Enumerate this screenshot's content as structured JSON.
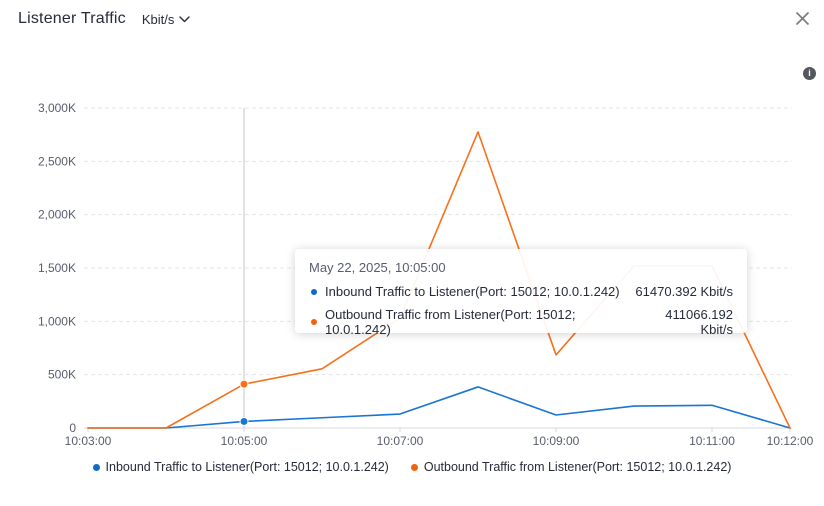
{
  "header": {
    "title": "Listener Traffic",
    "unit": "Kbit/s"
  },
  "tooltip": {
    "title": "May 22, 2025, 10:05:00",
    "rows": [
      {
        "label": "Inbound Traffic to Listener(Port: 15012; 10.0.1.242)",
        "value": "61470.392 Kbit/s",
        "color": "#0d6cc8"
      },
      {
        "label": "Outbound Traffic from Listener(Port: 15012; 10.0.1.242)",
        "value": "411066.192 Kbit/s",
        "color": "#f4610b"
      }
    ]
  },
  "legend": {
    "items": [
      {
        "label": "Inbound Traffic to Listener(Port: 15012; 10.0.1.242)",
        "color": "#0d6cc8"
      },
      {
        "label": "Outbound Traffic from Listener(Port: 15012; 10.0.1.242)",
        "color": "#f4610b"
      }
    ]
  },
  "chart_data": {
    "type": "line",
    "title": "Listener Traffic",
    "unit": "Kbit/s",
    "x": [
      "10:03:00",
      "10:04:00",
      "10:05:00",
      "10:06:00",
      "10:07:00",
      "10:08:00",
      "10:09:00",
      "10:10:00",
      "10:11:00",
      "10:12:00"
    ],
    "x_shown_tick_indices": [
      0,
      2,
      4,
      6,
      8,
      9
    ],
    "ylim": [
      0,
      3000000
    ],
    "y_ticks": [
      {
        "v": 0,
        "label": "0"
      },
      {
        "v": 500000,
        "label": "500K"
      },
      {
        "v": 1000000,
        "label": "1,000K"
      },
      {
        "v": 1500000,
        "label": "1,500K"
      },
      {
        "v": 2000000,
        "label": "2,000K"
      },
      {
        "v": 2500000,
        "label": "2,500K"
      },
      {
        "v": 3000000,
        "label": "3,000K"
      }
    ],
    "grid": "horizontal-dashed",
    "legend_position": "bottom",
    "series": [
      {
        "name": "Inbound Traffic to Listener(Port: 15012; 10.0.1.242)",
        "color": "#1a74d2",
        "values": [
          0,
          0,
          61470.392,
          96000,
          131000,
          385000,
          122000,
          206000,
          213000,
          0
        ]
      },
      {
        "name": "Outbound Traffic from Listener(Port: 15012; 10.0.1.242)",
        "color": "#f7711d",
        "values": [
          0,
          0,
          411066.192,
          555000,
          1030000,
          2776000,
          685000,
          1520000,
          1520000,
          0
        ]
      }
    ],
    "hover": {
      "index": 2,
      "label": "May 22, 2025, 10:05:00"
    }
  }
}
